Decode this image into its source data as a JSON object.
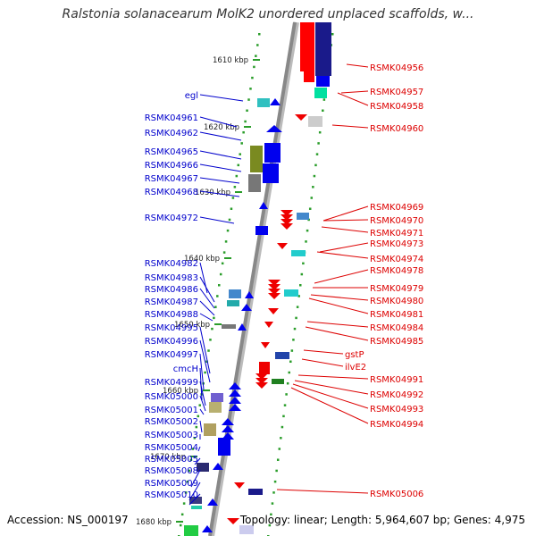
{
  "title": "Ralstonia solanacearum MolK2 unordered unplaced scaffolds, w...",
  "footer": {
    "accession": "Accession: NS_000197",
    "topology": "Topology: linear; Length: 5,964,607 bp; Genes: 4,975"
  },
  "colors": {
    "left_label": "#0000cc",
    "right_label": "#dd0000",
    "ruler_tick": "#2a9d2a",
    "backbone": "#888888"
  },
  "kbp_labels": [
    "1610 kbp",
    "1620 kbp",
    "1630 kbp",
    "1640 kbp",
    "1650 kbp",
    "1660 kbp",
    "1670 kbp",
    "1680 kbp"
  ],
  "left_genes": [
    "egl",
    "RSMK04961",
    "RSMK04962",
    "RSMK04965",
    "RSMK04966",
    "RSMK04967",
    "RSMK04968",
    "RSMK04972",
    "RSMK04982",
    "RSMK04983",
    "RSMK04986",
    "RSMK04987",
    "RSMK04988",
    "RSMK04995",
    "RSMK04996",
    "RSMK04997",
    "cmcH",
    "RSMK04999",
    "RSMK05000",
    "RSMK05001",
    "RSMK05002",
    "RSMK05003",
    "RSMK05004",
    "RSMK05005",
    "RSMK05008",
    "RSMK05009",
    "RSMK05010"
  ],
  "right_genes": [
    "RSMK04956",
    "RSMK04957",
    "RSMK04958",
    "RSMK04960",
    "RSMK04969",
    "RSMK04970",
    "RSMK04971",
    "RSMK04973",
    "RSMK04974",
    "RSMK04978",
    "RSMK04979",
    "RSMK04980",
    "RSMK04981",
    "RSMK04984",
    "RSMK04985",
    "gstP",
    "ilvE2",
    "RSMK04991",
    "RSMK04992",
    "RSMK04993",
    "RSMK04994",
    "RSMK05006"
  ]
}
